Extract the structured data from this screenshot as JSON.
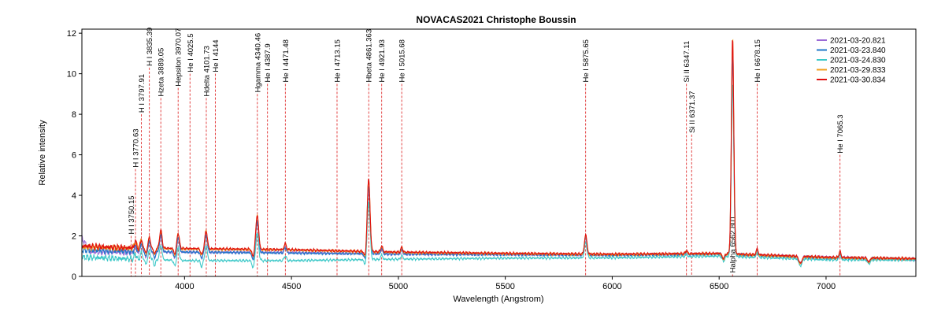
{
  "chart_data": {
    "type": "line",
    "title": "NOVACAS2021   Christophe Boussin",
    "xlabel": "Wavelength (Angstrom)",
    "ylabel": "Relative intensity",
    "xlim": [
      3520,
      7420
    ],
    "ylim": [
      0,
      12.2
    ],
    "x_ticks": [
      4000,
      4500,
      5000,
      5500,
      6000,
      6500,
      7000
    ],
    "y_ticks": [
      0,
      2,
      4,
      6,
      8,
      10,
      12
    ],
    "grid": false,
    "legend_position": "top-right",
    "series": [
      {
        "name": "2021-03-20.821",
        "color": "#9b6ad6",
        "cont": [
          [
            3520,
            1.9
          ],
          [
            3560,
            1.2
          ],
          [
            3700,
            1.2
          ],
          [
            4000,
            1.2
          ],
          [
            4500,
            1.18
          ],
          [
            5000,
            1.1
          ],
          [
            5500,
            1.08
          ],
          [
            6000,
            1.05
          ],
          [
            6500,
            1.1
          ],
          [
            7000,
            0.95
          ],
          [
            7420,
            0.85
          ]
        ],
        "peak_scale": 0.9
      },
      {
        "name": "2021-03-23.840",
        "color": "#1f77c9",
        "cont": [
          [
            3520,
            1.3
          ],
          [
            3700,
            1.25
          ],
          [
            4000,
            1.2
          ],
          [
            4500,
            1.15
          ],
          [
            5000,
            1.1
          ],
          [
            5500,
            1.08
          ],
          [
            6000,
            1.05
          ],
          [
            6500,
            1.1
          ],
          [
            7000,
            0.9
          ],
          [
            7420,
            0.85
          ]
        ],
        "peak_scale": 0.93
      },
      {
        "name": "2021-03-24.830",
        "color": "#3cc8c8",
        "cont": [
          [
            3520,
            0.95
          ],
          [
            3700,
            0.88
          ],
          [
            4000,
            0.78
          ],
          [
            4500,
            0.78
          ],
          [
            5000,
            0.85
          ],
          [
            5500,
            0.9
          ],
          [
            6000,
            0.92
          ],
          [
            6500,
            1.0
          ],
          [
            7000,
            0.82
          ],
          [
            7420,
            0.8
          ]
        ],
        "peak_scale": 0.8
      },
      {
        "name": "2021-03-29.833",
        "color": "#f0a020",
        "cont": [
          [
            3520,
            1.45
          ],
          [
            3700,
            1.4
          ],
          [
            4000,
            1.35
          ],
          [
            4500,
            1.3
          ],
          [
            5000,
            1.18
          ],
          [
            5500,
            1.12
          ],
          [
            6000,
            1.08
          ],
          [
            6500,
            1.12
          ],
          [
            7000,
            0.92
          ],
          [
            7420,
            0.87
          ]
        ],
        "peak_scale": 1.0
      },
      {
        "name": "2021-03-30.834",
        "color": "#e01010",
        "cont": [
          [
            3520,
            1.5
          ],
          [
            3700,
            1.42
          ],
          [
            4000,
            1.38
          ],
          [
            4500,
            1.32
          ],
          [
            5000,
            1.2
          ],
          [
            5500,
            1.14
          ],
          [
            6000,
            1.1
          ],
          [
            6500,
            1.14
          ],
          [
            7000,
            0.95
          ],
          [
            7420,
            0.88
          ]
        ],
        "peak_scale": 1.0
      }
    ],
    "peaks": [
      {
        "x": 3770,
        "h": 0.35,
        "w": 6
      },
      {
        "x": 3798,
        "h": 0.45,
        "w": 6
      },
      {
        "x": 3835,
        "h": 0.55,
        "w": 7
      },
      {
        "x": 3889,
        "h": 0.9,
        "w": 8
      },
      {
        "x": 3970,
        "h": 0.75,
        "w": 8
      },
      {
        "x": 4101,
        "h": 0.9,
        "w": 8
      },
      {
        "x": 4340,
        "h": 1.7,
        "w": 9
      },
      {
        "x": 4471,
        "h": 0.3,
        "w": 7
      },
      {
        "x": 4861,
        "h": 3.6,
        "w": 9
      },
      {
        "x": 4922,
        "h": 0.3,
        "w": 6
      },
      {
        "x": 5016,
        "h": 0.25,
        "w": 6
      },
      {
        "x": 5876,
        "h": 0.95,
        "w": 8
      },
      {
        "x": 6347,
        "h": 0.15,
        "w": 6
      },
      {
        "x": 6563,
        "h": 10.7,
        "w": 8
      },
      {
        "x": 6678,
        "h": 0.3,
        "w": 6
      },
      {
        "x": 7065,
        "h": 0.3,
        "w": 6
      }
    ],
    "dips": [
      {
        "x": 3820,
        "d": 0.25,
        "w": 6
      },
      {
        "x": 3860,
        "d": 0.3,
        "w": 6
      },
      {
        "x": 3955,
        "d": 0.3,
        "w": 7
      },
      {
        "x": 4080,
        "d": 0.3,
        "w": 7
      },
      {
        "x": 4320,
        "d": 0.35,
        "w": 7
      },
      {
        "x": 4845,
        "d": 0.3,
        "w": 7
      },
      {
        "x": 6520,
        "d": 0.25,
        "w": 8
      },
      {
        "x": 6880,
        "d": 0.35,
        "w": 10
      },
      {
        "x": 7200,
        "d": 0.2,
        "w": 8
      }
    ],
    "annotations": [
      {
        "label": "H I 3750.15",
        "x": 3750.15,
        "y": 2.0
      },
      {
        "label": "H I 3770.63",
        "x": 3770.63,
        "y": 5.3
      },
      {
        "label": "H I 3797.91",
        "x": 3797.91,
        "y": 8.0
      },
      {
        "label": "H I 3835.39",
        "x": 3835.39,
        "y": 10.3
      },
      {
        "label": "Hzeta 3889.05",
        "x": 3889.05,
        "y": 8.8
      },
      {
        "label": "Hepsilon 3970.07",
        "x": 3970.07,
        "y": 9.3
      },
      {
        "label": "He I 4025.5",
        "x": 4025.5,
        "y": 10.0
      },
      {
        "label": "Hdelta 4101.73",
        "x": 4101.73,
        "y": 8.8
      },
      {
        "label": "He I 4144",
        "x": 4144,
        "y": 10.0
      },
      {
        "label": "Hgamma 4340.46",
        "x": 4340.46,
        "y": 9.0
      },
      {
        "label": "He I 4387.9",
        "x": 4387.9,
        "y": 9.5
      },
      {
        "label": "He I 4471.48",
        "x": 4471.48,
        "y": 9.5
      },
      {
        "label": "He I 4713.15",
        "x": 4713.15,
        "y": 9.5
      },
      {
        "label": "Hbeta 4861.363",
        "x": 4861.363,
        "y": 9.5
      },
      {
        "label": "He I 4921.93",
        "x": 4921.93,
        "y": 9.5
      },
      {
        "label": "He I 5015.68",
        "x": 5015.68,
        "y": 9.5
      },
      {
        "label": "He I 5875.65",
        "x": 5875.65,
        "y": 9.5
      },
      {
        "label": "Si II 6347.11",
        "x": 6347.11,
        "y": 9.5
      },
      {
        "label": "Si II 6371.37",
        "x": 6371.37,
        "y": 7.0
      },
      {
        "label": "Halpha 6562.801",
        "x": 6562.801,
        "y": 0.1
      },
      {
        "label": "He I 6678.15",
        "x": 6678.15,
        "y": 9.5
      },
      {
        "label": "He I 7065.3",
        "x": 7065.3,
        "y": 6.0
      }
    ]
  }
}
